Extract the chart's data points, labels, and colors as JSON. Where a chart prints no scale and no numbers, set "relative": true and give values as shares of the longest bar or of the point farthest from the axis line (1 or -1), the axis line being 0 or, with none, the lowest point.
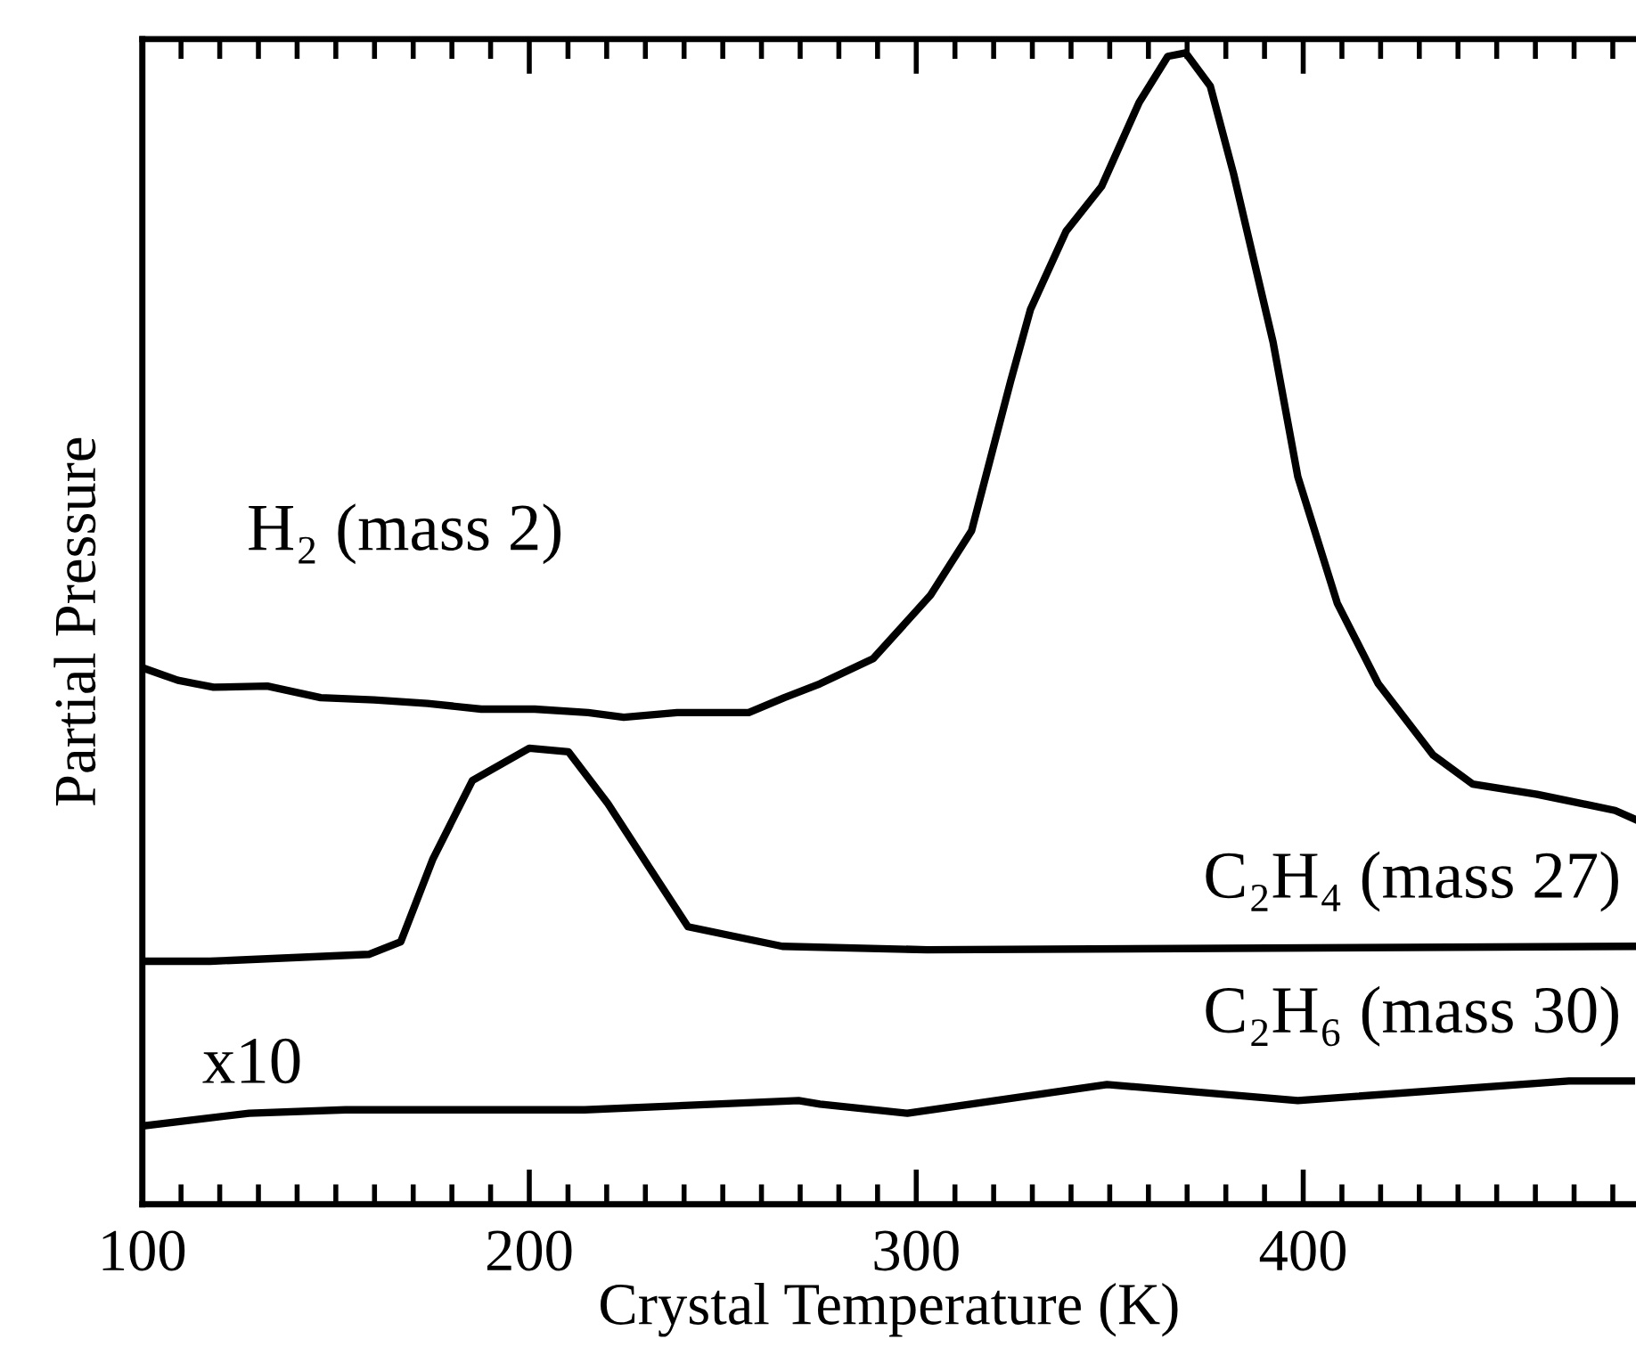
{
  "chart_data": {
    "type": "line",
    "relative": true,
    "xlabel": "Crystal Temperature (K)",
    "ylabel": "Partial Pressure",
    "xlim": [
      100,
      486
    ],
    "xticks": [
      100,
      200,
      300,
      400
    ],
    "grid": false,
    "legend": false,
    "marker": "none",
    "line_style": "solid",
    "annotations": [
      "x10"
    ],
    "series": [
      {
        "name": "H₂ (mass 2)",
        "color": "#000000",
        "x": [
          100,
          109.2,
          118.4,
          132.3,
          146.1,
          159.9,
          173.7,
          187.6,
          201.4,
          215.2,
          224.4,
          238.2,
          256.7,
          265.9,
          275.1,
          288.9,
          303.7,
          314.3,
          324.4,
          329.5,
          338.7,
          347.9,
          357.6,
          365.0,
          369.6,
          376.0,
          382.0,
          392.2,
          398.6,
          408.8,
          419.4,
          433.6,
          443.8,
          460.4,
          480.6,
          486
        ],
        "values": [
          0.466,
          0.455,
          0.449,
          0.45,
          0.44,
          0.438,
          0.435,
          0.43,
          0.43,
          0.427,
          0.423,
          0.427,
          0.427,
          0.44,
          0.452,
          0.474,
          0.529,
          0.585,
          0.715,
          0.777,
          0.845,
          0.884,
          0.957,
          0.997,
          1,
          0.971,
          0.895,
          0.749,
          0.632,
          0.522,
          0.452,
          0.39,
          0.365,
          0.356,
          0.342,
          0.334
        ]
      },
      {
        "name": "C₂H₄ (mass 27)",
        "color": "#000000",
        "x": [
          100,
          117.5,
          158.5,
          166.8,
          175.1,
          185.3,
          200.0,
          210.1,
          220.3,
          230.9,
          241.0,
          265.4,
          302.8,
          486
        ],
        "values": [
          0.211,
          0.211,
          0.217,
          0.228,
          0.3,
          0.368,
          0.396,
          0.393,
          0.348,
          0.293,
          0.241,
          0.224,
          0.221,
          0.224
        ]
      },
      {
        "name": "C₂H₆ (mass 30)",
        "color": "#000000",
        "x": [
          100,
          127.6,
          152.5,
          214.3,
          269.6,
          275.1,
          297.7,
          349.3,
          398.6,
          468.7,
          484.8
        ],
        "values": [
          0.068,
          0.079,
          0.082,
          0.082,
          0.09,
          0.087,
          0.079,
          0.104,
          0.09,
          0.107,
          0.107
        ]
      }
    ]
  }
}
